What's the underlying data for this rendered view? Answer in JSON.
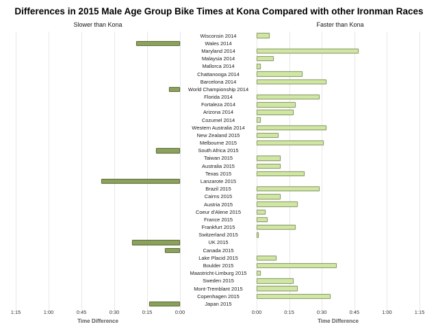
{
  "title": "Differences in 2015 Male Age Group Bike Times at Kona Compared with other Ironman Races",
  "headers": {
    "slower": "Slower than Kona",
    "faster": "Faster than Kona"
  },
  "axis": {
    "left_ticks": [
      "1:15",
      "1:00",
      "0:45",
      "0:30",
      "0:15",
      "0:00"
    ],
    "right_ticks": [
      "0:00",
      "0:15",
      "0:30",
      "0:45",
      "1:00",
      "1:15"
    ],
    "left_axis_label": "Time Difference",
    "right_axis_label": "Time Difference",
    "max_minutes": 75,
    "tick_interval_minutes": 15
  },
  "colors": {
    "slower_fill": "#8ba25d",
    "slower_border": "#5c6a31",
    "faster_fill": "#cfe7a3",
    "faster_border": "#8e9e68",
    "gridline": "#e7e7e7"
  },
  "chart_data": {
    "type": "bar",
    "orientation": "horizontal-diverging",
    "title": "Differences in 2015 Male Age Group Bike Times at Kona Compared with other Ironman Races",
    "xlabel": "Time Difference",
    "value_unit": "minutes (negative = slower than Kona, positive = faster than Kona)",
    "x_range_minutes": [
      -75,
      75
    ],
    "grid": true,
    "categories": [
      "Wisconsin 2014",
      "Wales 2014",
      "Maryland 2014",
      "Malaysia 2014",
      "Mallorca 2014",
      "Chattanooga 2014",
      "Barcelona 2014",
      "World Championship 2014",
      "Florida 2014",
      "Fortaleza 2014",
      "Arizona 2014",
      "Cozumel 2014",
      "Western Australia 2014",
      "New Zealand 2015",
      "Melbourne 2015",
      "South Africa 2015",
      "Taiwan 2015",
      "Australia 2015",
      "Texas 2015",
      "Lanzarote 2015",
      "Brazil 2015",
      "Cairns 2015",
      "Austria 2015",
      "Coeur d'Alene 2015",
      "France 2015",
      "Frankfurt 2015",
      "Switzerland 2015",
      "UK 2015",
      "Canada 2015",
      "Lake Placid 2015",
      "Boulder 2015",
      "Maastricht-Limburg 2015",
      "Sweden 2015",
      "Mont-Tremblant 2015",
      "Copenhagen 2015",
      "Japan 2015"
    ],
    "values_minutes": [
      6,
      -20,
      47,
      8,
      2,
      21,
      32,
      -5,
      29,
      18,
      17,
      2,
      32,
      10,
      31,
      -11,
      11,
      11,
      22,
      -36,
      29,
      11,
      19,
      4,
      5,
      18,
      1,
      -22,
      -7,
      9,
      37,
      2,
      17,
      19,
      34,
      -14
    ]
  }
}
